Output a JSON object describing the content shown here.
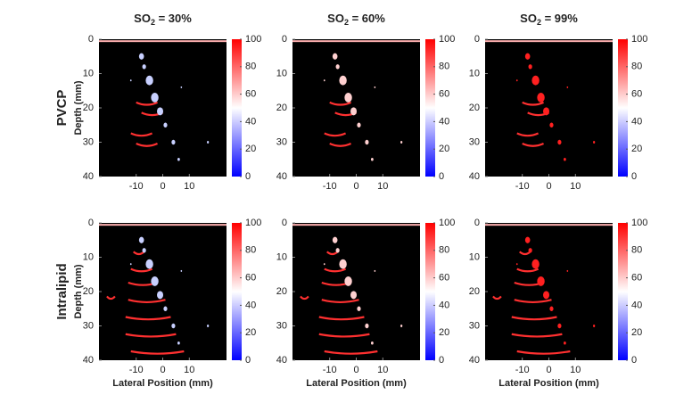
{
  "row_labels": [
    "PVCP",
    "Intralipid"
  ],
  "chart_data": [
    {
      "type": "image",
      "title": [
        "SO",
        "2",
        " = 30%"
      ],
      "ylabel": "Depth (mm)",
      "color": "#c8d0ff",
      "xlim": [
        -24,
        24
      ],
      "xticks": [
        -10,
        0,
        10
      ],
      "ylim": [
        40,
        0
      ],
      "yticks": [
        0,
        10,
        20,
        30,
        40
      ],
      "colorbar": {
        "lim": [
          0,
          100
        ],
        "ticks": [
          0,
          20,
          40,
          60,
          80,
          100
        ],
        "colormap": [
          "#0000ff",
          "#ffffff",
          "#ff0000"
        ]
      }
    },
    {
      "type": "image",
      "title": [
        "SO",
        "2",
        " = 60%"
      ],
      "color": "#ffd0d0",
      "xlim": [
        -24,
        24
      ],
      "xticks": [
        -10,
        0,
        10
      ],
      "ylim": [
        40,
        0
      ],
      "yticks": [
        0,
        10,
        20,
        30,
        40
      ],
      "colorbar": {
        "lim": [
          0,
          100
        ],
        "ticks": [
          0,
          20,
          40,
          60,
          80,
          100
        ],
        "colormap": [
          "#0000ff",
          "#ffffff",
          "#ff0000"
        ]
      }
    },
    {
      "type": "image",
      "title": [
        "SO",
        "2",
        " = 99%"
      ],
      "color": "#ff2020",
      "xlim": [
        -24,
        24
      ],
      "xticks": [
        -10,
        0,
        10
      ],
      "ylim": [
        40,
        0
      ],
      "yticks": [
        0,
        10,
        20,
        30,
        40
      ],
      "colorbar": {
        "lim": [
          0,
          100
        ],
        "ticks": [
          0,
          20,
          40,
          60,
          80,
          100
        ],
        "colormap": [
          "#0000ff",
          "#ffffff",
          "#ff0000"
        ]
      }
    },
    {
      "type": "image",
      "ylabel": "Depth (mm)",
      "xlabel": "Lateral Position (mm)",
      "color": "#c8d0ff",
      "xlim": [
        -24,
        24
      ],
      "xticks": [
        -10,
        0,
        10
      ],
      "ylim": [
        40,
        0
      ],
      "yticks": [
        0,
        10,
        20,
        30,
        40
      ],
      "colorbar": {
        "lim": [
          0,
          100
        ],
        "ticks": [
          0,
          20,
          40,
          60,
          80,
          100
        ],
        "colormap": [
          "#0000ff",
          "#ffffff",
          "#ff0000"
        ]
      }
    },
    {
      "type": "image",
      "xlabel": "Lateral Position (mm)",
      "color": "#ffd0d0",
      "xlim": [
        -24,
        24
      ],
      "xticks": [
        -10,
        0,
        10
      ],
      "ylim": [
        40,
        0
      ],
      "yticks": [
        0,
        10,
        20,
        30,
        40
      ],
      "colorbar": {
        "lim": [
          0,
          100
        ],
        "ticks": [
          0,
          20,
          40,
          60,
          80,
          100
        ],
        "colormap": [
          "#0000ff",
          "#ffffff",
          "#ff0000"
        ]
      }
    },
    {
      "type": "image",
      "xlabel": "Lateral Position (mm)",
      "color": "#ff2020",
      "xlim": [
        -24,
        24
      ],
      "xticks": [
        -10,
        0,
        10
      ],
      "ylim": [
        40,
        0
      ],
      "yticks": [
        0,
        10,
        20,
        30,
        40
      ],
      "colorbar": {
        "lim": [
          0,
          100
        ],
        "ticks": [
          0,
          20,
          40,
          60,
          80,
          100
        ],
        "colormap": [
          "#0000ff",
          "#ffffff",
          "#ff0000"
        ]
      }
    }
  ]
}
